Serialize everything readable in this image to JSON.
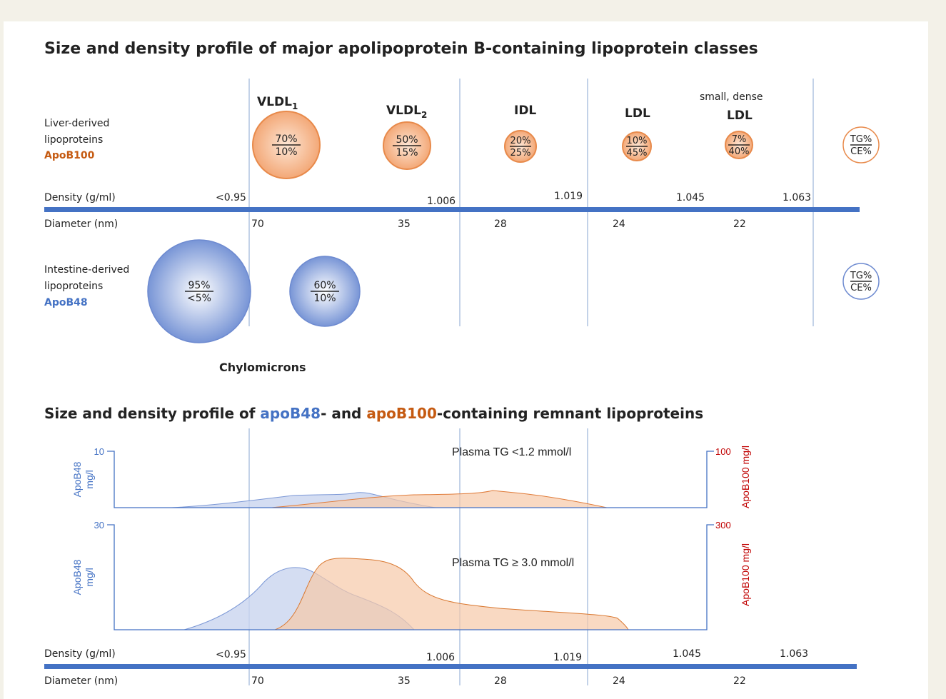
{
  "top": {
    "title": "Size and density profile of major apolipoprotein B-containing lipoprotein classes",
    "liver_label": [
      "Liver-derived",
      "lipoproteins",
      "ApoB100"
    ],
    "intestine_label": [
      "Intestine-derived",
      "lipoproteins",
      "ApoB48"
    ],
    "classes": [
      {
        "name": "VLDL",
        "sub": "1",
        "tg": "70%",
        "ce": "10%"
      },
      {
        "name": "VLDL",
        "sub": "2",
        "tg": "50%",
        "ce": "15%"
      },
      {
        "name": "IDL",
        "tg": "20%",
        "ce": "25%"
      },
      {
        "name": "LDL",
        "tg": "10%",
        "ce": "45%"
      },
      {
        "name": "LDL",
        "qualifier": "small, dense",
        "tg": "7%",
        "ce": "40%"
      }
    ],
    "chylomicrons": [
      {
        "tg": "95%",
        "ce": "<5%"
      },
      {
        "tg": "60%",
        "ce": "10%"
      }
    ],
    "chylomicrons_label": "Chylomicrons",
    "legend": {
      "tg": "TG%",
      "ce": "CE%"
    },
    "density_label": "Density (g/ml)",
    "densities": [
      "<0.95",
      "1.006",
      "1.019",
      "1.045",
      "1.063"
    ],
    "diameter_label": "Diameter (nm)",
    "diameters": [
      "70",
      "35",
      "28",
      "24",
      "22"
    ]
  },
  "bottom": {
    "title_parts": [
      "Size and density profile of ",
      "apoB48",
      "- and ",
      "apoB100",
      "-containing remnant lipoproteins"
    ],
    "left_axis": [
      "ApoB48",
      "mg/l"
    ],
    "right_axis": "ApoB100 mg/l",
    "panels": [
      {
        "label": "Plasma TG <1.2 mmol/l",
        "left_max": "10",
        "right_max": "100"
      },
      {
        "label": "Plasma TG ≥ 3.0 mmol/l",
        "left_max": "30",
        "right_max": "300"
      }
    ],
    "density_label": "Density (g/ml)",
    "densities": [
      "<0.95",
      "1.006",
      "1.019",
      "1.045",
      "1.063"
    ],
    "diameter_label": "Diameter (nm)",
    "diameters": [
      "70",
      "35",
      "28",
      "24",
      "22"
    ]
  }
}
